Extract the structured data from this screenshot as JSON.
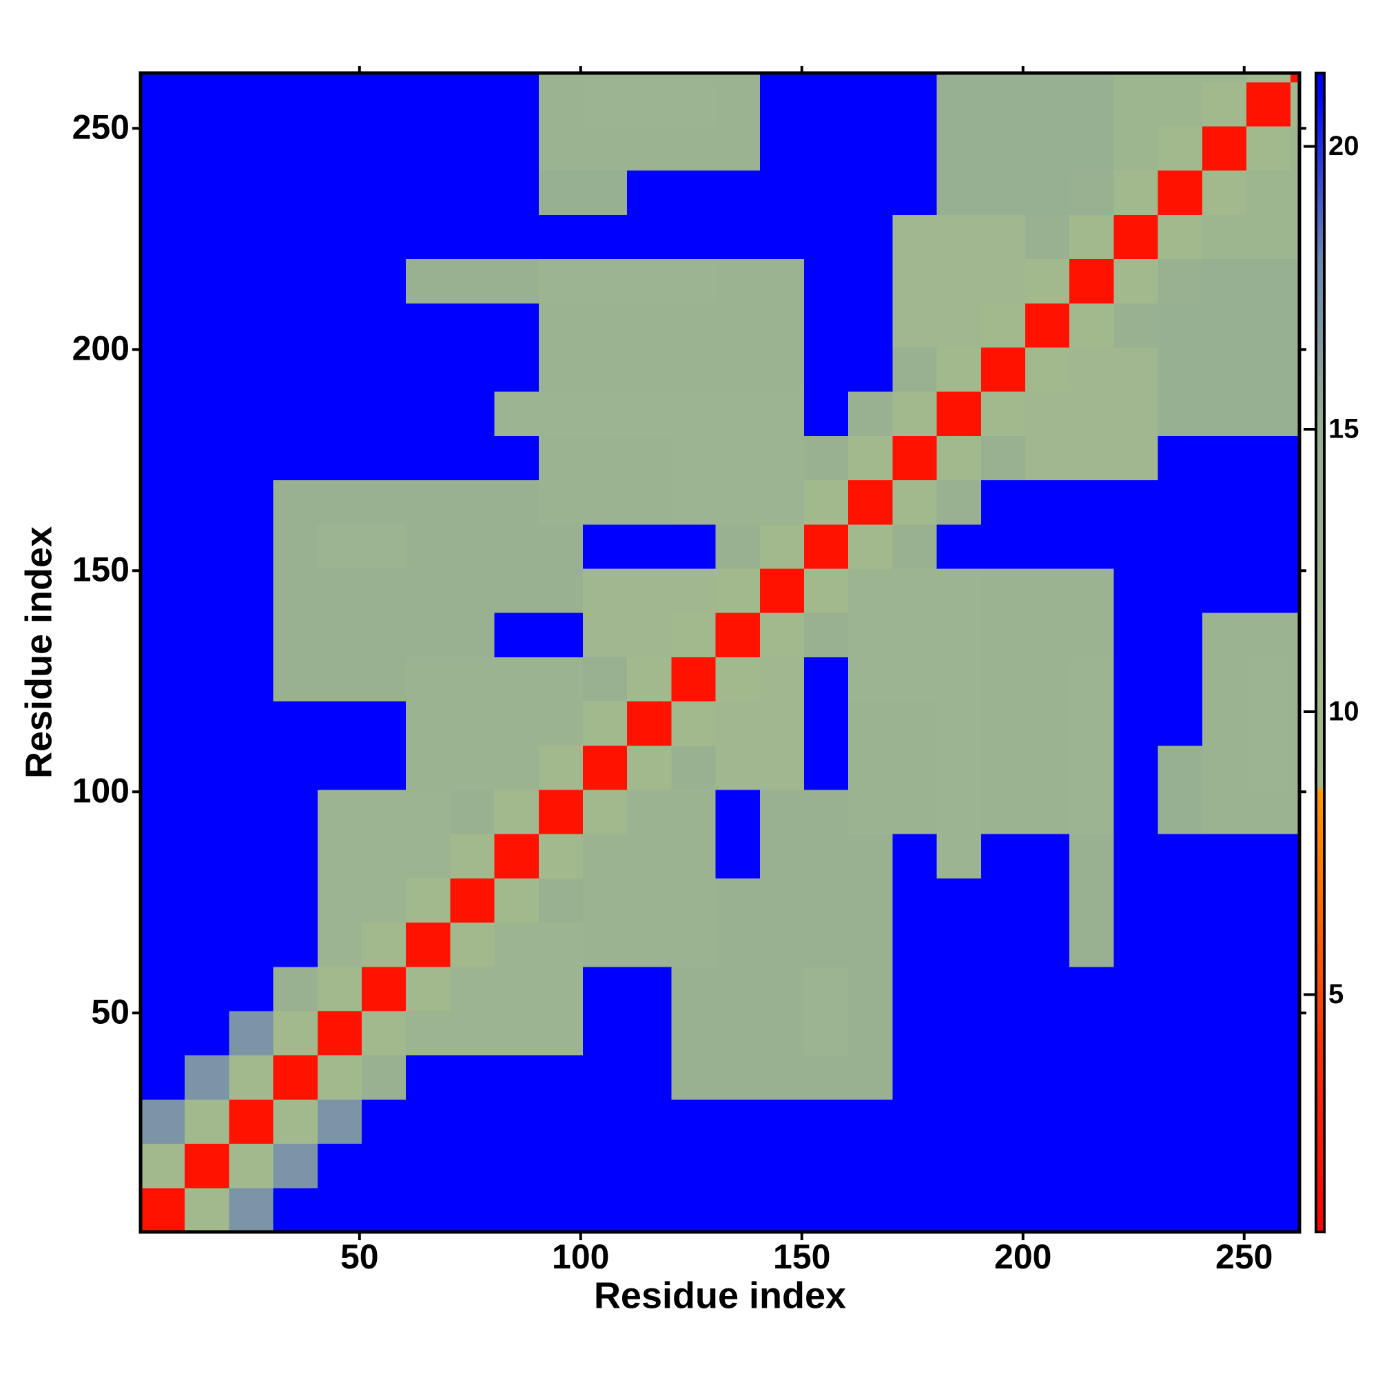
{
  "chart_data": {
    "type": "heatmap",
    "xlabel": "Residue index",
    "ylabel": "Residue index",
    "xlim": [
      0.5,
      262.5
    ],
    "ylim": [
      0.5,
      262.5
    ],
    "xticks": [
      50,
      100,
      150,
      200,
      250
    ],
    "yticks": [
      50,
      100,
      150,
      200,
      250
    ],
    "clim": [
      0.8,
      21.3
    ],
    "colorbar_ticks": [
      5,
      10,
      15,
      20
    ],
    "colorscale": [
      [
        0.8,
        "#ff0000"
      ],
      [
        4,
        "#ff3000"
      ],
      [
        8.6,
        "#ff9900"
      ],
      [
        8.7,
        "#a2b98e"
      ],
      [
        15,
        "#98b092"
      ],
      [
        18,
        "#6d87b0"
      ],
      [
        21,
        "#0000ff"
      ]
    ],
    "xbins": [
      0.5,
      10.5,
      20.5,
      30.5,
      40.5,
      50.5,
      60.5,
      70.5,
      80.5,
      90.5,
      100.5,
      110.5,
      120.5,
      130.5,
      140.5,
      150.5,
      160.5,
      170.5,
      180.5,
      190.5,
      200.5,
      210.5,
      220.5,
      230.5,
      240.5,
      250.5,
      260.5,
      262.5
    ],
    "ybins": [
      0.5,
      10.5,
      20.5,
      30.5,
      40.5,
      50.5,
      60.5,
      70.5,
      80.5,
      90.5,
      100.5,
      110.5,
      120.5,
      130.5,
      140.5,
      150.5,
      160.5,
      170.5,
      180.5,
      190.5,
      200.5,
      210.5,
      220.5,
      230.5,
      240.5,
      250.5,
      260.5,
      262.5
    ],
    "z": [
      [
        2,
        9,
        17,
        21,
        21,
        21,
        21,
        21,
        21,
        21,
        21,
        21,
        21,
        21,
        21,
        21,
        21,
        21,
        21,
        21,
        21,
        21,
        21,
        21,
        21,
        21,
        21
      ],
      [
        9,
        2,
        9,
        17,
        21,
        21,
        21,
        21,
        21,
        21,
        21,
        21,
        21,
        21,
        21,
        21,
        21,
        21,
        21,
        21,
        21,
        21,
        21,
        21,
        21,
        21,
        21
      ],
      [
        17,
        9,
        2,
        9,
        17,
        21,
        21,
        21,
        21,
        21,
        21,
        21,
        21,
        21,
        21,
        21,
        21,
        21,
        21,
        21,
        21,
        21,
        21,
        21,
        21,
        21,
        21
      ],
      [
        21,
        17,
        9,
        2,
        9,
        14,
        21,
        21,
        21,
        21,
        21,
        21,
        14,
        14,
        14,
        14,
        14,
        21,
        21,
        21,
        21,
        21,
        21,
        21,
        21,
        21,
        21
      ],
      [
        21,
        21,
        17,
        9,
        2,
        9,
        12,
        12,
        12,
        12,
        21,
        21,
        14,
        14,
        14,
        12,
        14,
        21,
        21,
        21,
        21,
        21,
        21,
        21,
        21,
        21,
        21
      ],
      [
        21,
        21,
        21,
        14,
        9,
        2,
        9,
        12,
        12,
        12,
        21,
        21,
        14,
        14,
        14,
        12,
        14,
        21,
        21,
        21,
        21,
        21,
        21,
        21,
        21,
        21,
        21
      ],
      [
        21,
        21,
        21,
        21,
        12,
        9,
        2,
        9,
        12,
        12,
        13,
        13,
        13,
        14,
        14,
        14,
        14,
        21,
        21,
        21,
        21,
        14,
        21,
        21,
        21,
        21,
        21
      ],
      [
        21,
        21,
        21,
        21,
        12,
        12,
        9,
        2,
        9,
        14,
        13,
        13,
        13,
        14,
        14,
        14,
        14,
        21,
        21,
        21,
        21,
        14,
        21,
        21,
        21,
        21,
        21
      ],
      [
        21,
        21,
        21,
        21,
        12,
        12,
        12,
        9,
        2,
        9,
        13,
        13,
        13,
        21,
        14,
        14,
        14,
        21,
        12,
        21,
        21,
        14,
        21,
        21,
        21,
        21,
        21
      ],
      [
        21,
        21,
        21,
        21,
        12,
        12,
        12,
        14,
        9,
        2,
        9,
        13,
        13,
        21,
        14,
        14,
        13,
        13,
        12,
        13,
        13,
        12,
        21,
        15,
        13,
        13,
        13
      ],
      [
        21,
        21,
        21,
        21,
        21,
        21,
        13,
        13,
        13,
        9,
        2,
        9,
        14,
        10,
        10,
        21,
        13,
        13,
        12,
        13,
        13,
        12,
        21,
        15,
        13,
        12,
        13
      ],
      [
        21,
        21,
        21,
        21,
        21,
        21,
        13,
        13,
        13,
        13,
        9,
        2,
        9,
        10,
        10,
        21,
        13,
        13,
        12,
        13,
        13,
        12,
        21,
        21,
        13,
        12,
        13
      ],
      [
        21,
        21,
        21,
        14,
        14,
        14,
        13,
        13,
        13,
        13,
        14,
        9,
        2,
        9,
        10,
        21,
        12,
        12,
        12,
        13,
        13,
        12,
        21,
        21,
        13,
        12,
        13
      ],
      [
        21,
        21,
        21,
        14,
        14,
        14,
        14,
        14,
        21,
        21,
        10,
        10,
        9,
        2,
        9,
        14,
        12,
        12,
        12,
        13,
        13,
        13,
        21,
        21,
        13,
        13,
        13
      ],
      [
        21,
        21,
        21,
        14,
        14,
        14,
        14,
        14,
        14,
        14,
        10,
        10,
        10,
        9,
        2,
        9,
        12,
        12,
        12,
        13,
        13,
        13,
        21,
        21,
        21,
        21,
        21
      ],
      [
        21,
        21,
        21,
        14,
        12,
        12,
        14,
        14,
        14,
        14,
        21,
        21,
        21,
        14,
        9,
        2,
        9,
        14,
        21,
        21,
        21,
        21,
        21,
        21,
        21,
        21,
        21
      ],
      [
        21,
        21,
        21,
        14,
        14,
        14,
        14,
        14,
        14,
        13,
        13,
        13,
        12,
        12,
        12,
        9,
        2,
        9,
        14,
        21,
        21,
        21,
        21,
        21,
        21,
        21,
        21
      ],
      [
        21,
        21,
        21,
        21,
        21,
        21,
        21,
        21,
        21,
        13,
        13,
        13,
        12,
        12,
        12,
        14,
        9,
        2,
        9,
        14,
        10,
        10,
        10,
        21,
        21,
        21,
        21
      ],
      [
        21,
        21,
        21,
        21,
        21,
        21,
        21,
        21,
        12,
        12,
        12,
        12,
        12,
        12,
        12,
        21,
        14,
        9,
        2,
        9,
        10,
        10,
        10,
        15,
        15,
        15,
        15
      ],
      [
        21,
        21,
        21,
        21,
        21,
        21,
        21,
        21,
        21,
        13,
        13,
        13,
        13,
        13,
        13,
        21,
        21,
        14,
        9,
        2,
        9,
        10,
        10,
        15,
        15,
        15,
        15
      ],
      [
        21,
        21,
        21,
        21,
        21,
        21,
        21,
        21,
        21,
        13,
        13,
        13,
        13,
        13,
        13,
        21,
        21,
        10,
        10,
        9,
        2,
        9,
        14,
        15,
        15,
        15,
        15
      ],
      [
        21,
        21,
        21,
        21,
        21,
        21,
        14,
        14,
        14,
        12,
        12,
        12,
        12,
        13,
        13,
        21,
        21,
        10,
        10,
        10,
        9,
        2,
        9,
        14,
        15,
        15,
        15
      ],
      [
        21,
        21,
        21,
        21,
        21,
        21,
        21,
        21,
        21,
        21,
        21,
        21,
        21,
        21,
        21,
        21,
        21,
        10,
        10,
        10,
        14,
        9,
        2,
        9,
        11,
        11,
        11
      ],
      [
        21,
        21,
        21,
        21,
        21,
        21,
        21,
        21,
        21,
        15,
        15,
        21,
        21,
        21,
        21,
        21,
        21,
        21,
        15,
        15,
        15,
        14,
        9,
        2,
        9,
        11,
        11
      ],
      [
        21,
        21,
        21,
        21,
        21,
        21,
        21,
        21,
        21,
        13,
        13,
        13,
        13,
        13,
        21,
        21,
        21,
        21,
        15,
        15,
        15,
        15,
        11,
        9,
        2,
        9,
        11
      ],
      [
        21,
        21,
        21,
        21,
        21,
        21,
        21,
        21,
        21,
        13,
        12,
        12,
        12,
        13,
        21,
        21,
        21,
        21,
        15,
        15,
        15,
        15,
        11,
        11,
        9,
        2,
        9
      ],
      [
        21,
        21,
        21,
        21,
        21,
        21,
        21,
        21,
        21,
        13,
        13,
        13,
        13,
        13,
        21,
        21,
        21,
        21,
        15,
        15,
        15,
        15,
        11,
        11,
        11,
        9,
        2
      ]
    ]
  }
}
